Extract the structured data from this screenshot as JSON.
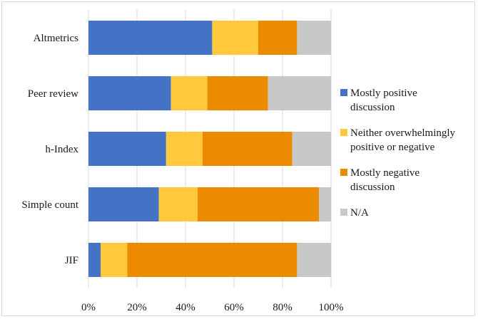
{
  "chart_data": {
    "type": "bar",
    "orientation": "horizontal",
    "stacked": "percent",
    "categories": [
      "Altmetrics",
      "Peer review",
      "h-Index",
      "Simple count",
      "JIF"
    ],
    "series": [
      {
        "name": "Mostly positive discussion",
        "color": "#4472C4",
        "values": [
          51,
          34,
          32,
          29,
          5
        ]
      },
      {
        "name": "Neither overwhelmingly positive or negative",
        "color": "#FFC83D",
        "values": [
          19,
          15,
          15,
          16,
          11
        ]
      },
      {
        "name": "Mostly negative discussion",
        "color": "#ED8B00",
        "values": [
          16,
          25,
          37,
          50,
          70
        ]
      },
      {
        "name": "N/A",
        "color": "#C8C8C8",
        "values": [
          14,
          26,
          16,
          5,
          14
        ]
      }
    ],
    "xlim": [
      0,
      100
    ],
    "xticks": [
      "0%",
      "20%",
      "40%",
      "60%",
      "80%",
      "100%"
    ],
    "legend": {
      "position": "right",
      "entries": [
        [
          "Mostly positive",
          "discussion"
        ],
        [
          "Neither overwhelmingly",
          "positive or negative"
        ],
        [
          "Mostly negative",
          "discussion"
        ],
        [
          "N/A"
        ]
      ]
    },
    "grid": "vertical"
  }
}
